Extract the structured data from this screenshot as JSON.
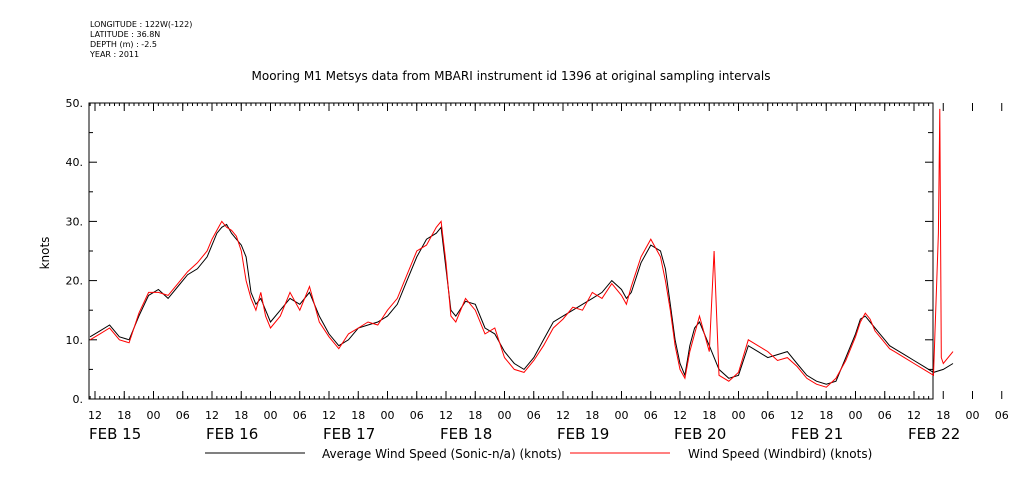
{
  "metadata": {
    "longitude": "LONGITUDE : 122W(-122)",
    "latitude": "LATITUDE : 36.8N",
    "depth": "DEPTH (m) : -2.5",
    "year": "YEAR : 2011"
  },
  "chart_data": {
    "type": "line",
    "title": "Mooring M1 Metsys data from MBARI instrument id 1396 at original sampling intervals",
    "ylabel": "knots",
    "xlabel": "",
    "ylim": [
      0,
      50
    ],
    "yticks": [
      "0.",
      "10.",
      "20.",
      "30.",
      "40.",
      "50."
    ],
    "x_unit": "hours since Feb 15 00:00 (2011)",
    "xlim": [
      10,
      188
    ],
    "hour_tick_labels": [
      "12",
      "18",
      "00",
      "06",
      "12",
      "18",
      "00",
      "06",
      "12",
      "18",
      "00",
      "06",
      "12",
      "18",
      "00",
      "06",
      "12",
      "18",
      "00",
      "06",
      "12",
      "18",
      "00",
      "06",
      "12",
      "18",
      "00",
      "06",
      "12",
      "18",
      "00",
      "06",
      "12"
    ],
    "day_labels": [
      "FEB 15",
      "FEB 16",
      "FEB 17",
      "FEB 18",
      "FEB 19",
      "FEB 20",
      "FEB 21",
      "FEB 22"
    ],
    "grid": false,
    "legend_position": "bottom",
    "series": [
      {
        "name": "Average Wind Speed (Sonic-n/a) (knots)",
        "color": "#000000",
        "points": [
          [
            11,
            10.5
          ],
          [
            13,
            11.5
          ],
          [
            15,
            12.5
          ],
          [
            17,
            10.5
          ],
          [
            19,
            10
          ],
          [
            21,
            14
          ],
          [
            23,
            17.5
          ],
          [
            25,
            18.5
          ],
          [
            27,
            17
          ],
          [
            29,
            19
          ],
          [
            31,
            21
          ],
          [
            33,
            22
          ],
          [
            35,
            24
          ],
          [
            36,
            26
          ],
          [
            37,
            28
          ],
          [
            38,
            29
          ],
          [
            39,
            29.5
          ],
          [
            40,
            28
          ],
          [
            41,
            27
          ],
          [
            42,
            26
          ],
          [
            43,
            24
          ],
          [
            44,
            18
          ],
          [
            45,
            16
          ],
          [
            46,
            17
          ],
          [
            47,
            15
          ],
          [
            48,
            13
          ],
          [
            50,
            15
          ],
          [
            52,
            17
          ],
          [
            54,
            16
          ],
          [
            56,
            18
          ],
          [
            58,
            14
          ],
          [
            60,
            11
          ],
          [
            62,
            9
          ],
          [
            64,
            10
          ],
          [
            66,
            12
          ],
          [
            68,
            12.5
          ],
          [
            70,
            13
          ],
          [
            72,
            14
          ],
          [
            74,
            16
          ],
          [
            76,
            20
          ],
          [
            78,
            24
          ],
          [
            80,
            27
          ],
          [
            82,
            28
          ],
          [
            83,
            29
          ],
          [
            84,
            22
          ],
          [
            85,
            15
          ],
          [
            86,
            14
          ],
          [
            88,
            16.5
          ],
          [
            90,
            16
          ],
          [
            92,
            12
          ],
          [
            94,
            11
          ],
          [
            96,
            8
          ],
          [
            98,
            6
          ],
          [
            100,
            5
          ],
          [
            102,
            7
          ],
          [
            104,
            10
          ],
          [
            106,
            13
          ],
          [
            108,
            14
          ],
          [
            110,
            15
          ],
          [
            112,
            16
          ],
          [
            114,
            17
          ],
          [
            116,
            18
          ],
          [
            118,
            20
          ],
          [
            120,
            18.5
          ],
          [
            121,
            17
          ],
          [
            122,
            18
          ],
          [
            124,
            23
          ],
          [
            126,
            26
          ],
          [
            128,
            25
          ],
          [
            129,
            22
          ],
          [
            130,
            16
          ],
          [
            131,
            10
          ],
          [
            132,
            6
          ],
          [
            133,
            4
          ],
          [
            134,
            9
          ],
          [
            135,
            12
          ],
          [
            136,
            13
          ],
          [
            138,
            9
          ],
          [
            140,
            5
          ],
          [
            142,
            3.5
          ],
          [
            144,
            4
          ],
          [
            146,
            9
          ],
          [
            148,
            8
          ],
          [
            150,
            7
          ],
          [
            152,
            7.5
          ],
          [
            154,
            8
          ],
          [
            156,
            6
          ],
          [
            158,
            4
          ],
          [
            160,
            3
          ],
          [
            162,
            2.5
          ],
          [
            164,
            3
          ],
          [
            166,
            7
          ],
          [
            168,
            11
          ],
          [
            169,
            13.5
          ],
          [
            170,
            14
          ],
          [
            171,
            13
          ],
          [
            172,
            12
          ],
          [
            173,
            11
          ],
          [
            174,
            10
          ],
          [
            175,
            9
          ],
          [
            176,
            8.5
          ],
          [
            178,
            7.5
          ],
          [
            180,
            6.5
          ],
          [
            182,
            5.5
          ],
          [
            184,
            4.5
          ],
          [
            186,
            5
          ],
          [
            188,
            6
          ]
        ]
      },
      {
        "name": "Wind Speed (Windbird) (knots)",
        "color": "#ff0000",
        "points": [
          [
            11,
            10
          ],
          [
            13,
            11
          ],
          [
            15,
            12
          ],
          [
            17,
            10
          ],
          [
            19,
            9.5
          ],
          [
            21,
            14.5
          ],
          [
            23,
            18
          ],
          [
            25,
            18
          ],
          [
            27,
            17.5
          ],
          [
            29,
            19.5
          ],
          [
            31,
            21.5
          ],
          [
            33,
            23
          ],
          [
            35,
            25
          ],
          [
            36,
            27
          ],
          [
            37,
            28.5
          ],
          [
            38,
            30
          ],
          [
            39,
            29
          ],
          [
            40,
            28.5
          ],
          [
            41,
            27.5
          ],
          [
            42,
            25
          ],
          [
            43,
            20
          ],
          [
            44,
            17
          ],
          [
            45,
            15
          ],
          [
            46,
            18
          ],
          [
            47,
            14
          ],
          [
            48,
            12
          ],
          [
            50,
            14
          ],
          [
            52,
            18
          ],
          [
            54,
            15
          ],
          [
            56,
            19
          ],
          [
            58,
            13
          ],
          [
            60,
            10.5
          ],
          [
            62,
            8.5
          ],
          [
            64,
            11
          ],
          [
            66,
            12
          ],
          [
            68,
            13
          ],
          [
            70,
            12.5
          ],
          [
            72,
            15
          ],
          [
            74,
            17
          ],
          [
            76,
            21
          ],
          [
            78,
            25
          ],
          [
            80,
            26
          ],
          [
            82,
            29
          ],
          [
            83,
            30
          ],
          [
            84,
            23
          ],
          [
            85,
            14
          ],
          [
            86,
            13
          ],
          [
            88,
            17
          ],
          [
            90,
            15
          ],
          [
            92,
            11
          ],
          [
            94,
            12
          ],
          [
            96,
            7
          ],
          [
            98,
            5
          ],
          [
            100,
            4.5
          ],
          [
            102,
            6.5
          ],
          [
            104,
            9
          ],
          [
            106,
            12
          ],
          [
            108,
            13.5
          ],
          [
            110,
            15.5
          ],
          [
            112,
            15
          ],
          [
            114,
            18
          ],
          [
            116,
            17
          ],
          [
            118,
            19.5
          ],
          [
            120,
            17.5
          ],
          [
            121,
            16
          ],
          [
            122,
            19
          ],
          [
            124,
            24
          ],
          [
            126,
            27
          ],
          [
            128,
            24
          ],
          [
            129,
            20
          ],
          [
            130,
            15
          ],
          [
            131,
            9
          ],
          [
            132,
            5
          ],
          [
            133,
            3.5
          ],
          [
            134,
            8
          ],
          [
            135,
            11
          ],
          [
            136,
            14
          ],
          [
            138,
            8
          ],
          [
            139,
            25
          ],
          [
            140,
            4
          ],
          [
            142,
            3
          ],
          [
            144,
            4.5
          ],
          [
            146,
            10
          ],
          [
            148,
            9
          ],
          [
            150,
            8
          ],
          [
            152,
            6.5
          ],
          [
            154,
            7
          ],
          [
            156,
            5.5
          ],
          [
            158,
            3.5
          ],
          [
            160,
            2.5
          ],
          [
            162,
            2
          ],
          [
            164,
            3.5
          ],
          [
            166,
            6.5
          ],
          [
            168,
            10.5
          ],
          [
            169,
            13
          ],
          [
            170,
            14.5
          ],
          [
            171,
            13.5
          ],
          [
            172,
            11.5
          ],
          [
            173,
            10.5
          ],
          [
            174,
            9.5
          ],
          [
            175,
            8.5
          ],
          [
            176,
            8
          ],
          [
            178,
            7
          ],
          [
            180,
            6
          ],
          [
            182,
            5
          ],
          [
            184,
            4
          ],
          [
            185,
            28
          ],
          [
            185.3,
            49
          ],
          [
            185.6,
            7
          ],
          [
            186,
            6
          ],
          [
            188,
            8
          ]
        ]
      }
    ]
  }
}
